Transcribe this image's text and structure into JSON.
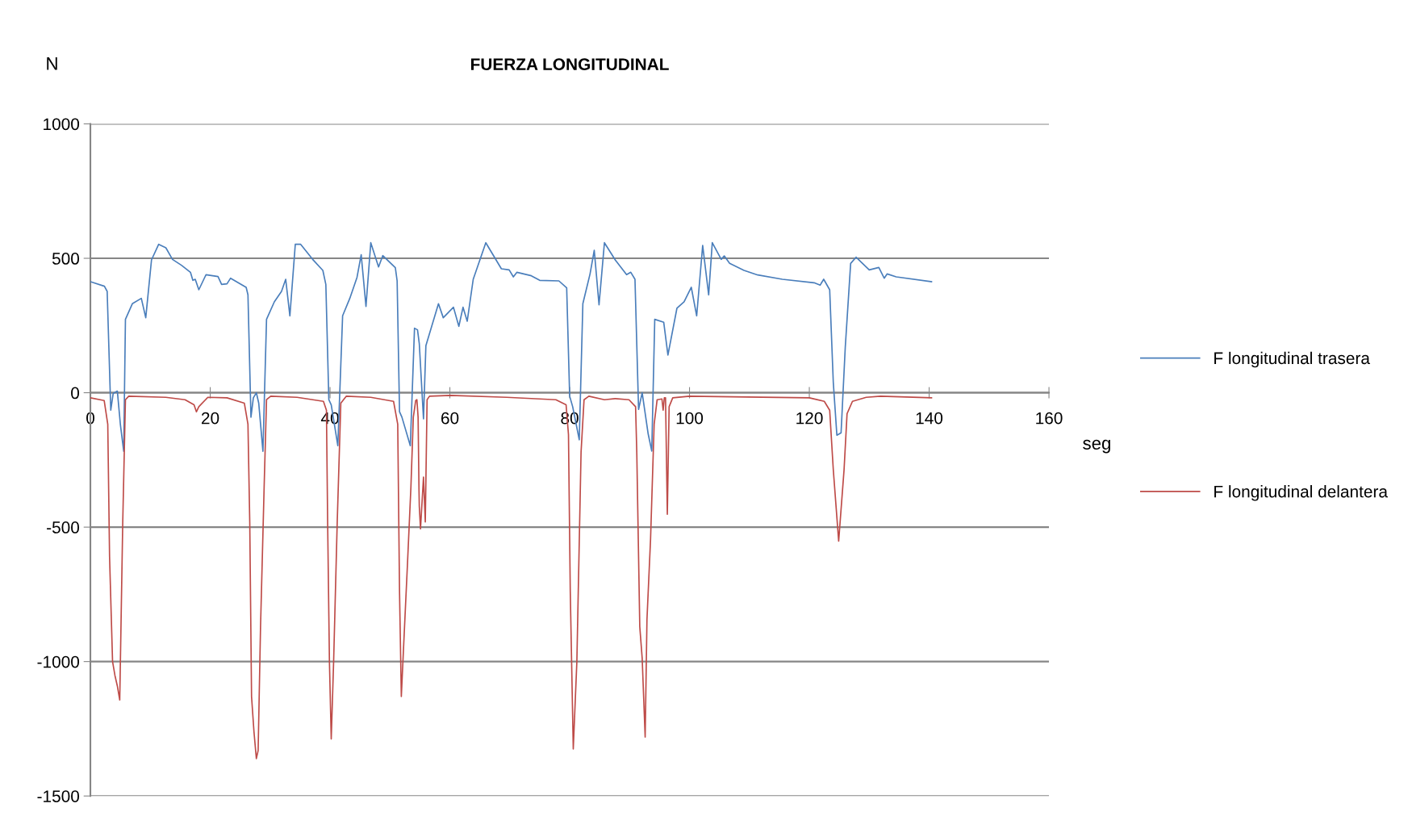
{
  "chart_data": {
    "type": "line",
    "title": "FUERZA LONGITUDINAL",
    "xlabel": "seg",
    "ylabel": "N",
    "xlim": [
      0,
      160
    ],
    "xticks": [
      0,
      20,
      40,
      60,
      80,
      100,
      120,
      140,
      160
    ],
    "ylim": [
      -1500,
      1000
    ],
    "yticks": [
      -1500,
      -1000,
      -500,
      0,
      500,
      1000
    ],
    "grid": "y",
    "legend": "right",
    "marker": "none",
    "line_style": "solid",
    "series": [
      {
        "name": "F longitudinal trasera",
        "color": "#4a7ebb",
        "x": [
          0,
          2.34,
          2.8,
          3.4,
          3.8,
          4.5,
          5.0,
          5.56,
          5.85,
          7.0,
          8.5,
          9.24,
          10.2,
          11.4,
          12.6,
          13.7,
          15.2,
          16.7,
          17.1,
          17.5,
          18.1,
          19.3,
          21.3,
          21.9,
          22.8,
          23.4,
          26.0,
          26.3,
          26.8,
          27.2,
          27.7,
          28.1,
          28.8,
          29.4,
          30.7,
          31.9,
          32.6,
          33.3,
          34.2,
          35.1,
          37.1,
          38.8,
          39.3,
          39.8,
          40.2,
          41.3,
          42.1,
          43.3,
          44.5,
          45.2,
          46.0,
          46.8,
          48.1,
          48.8,
          50.9,
          51.2,
          51.6,
          52.0,
          53.4,
          54.1,
          54.6,
          54.9,
          55.6,
          56.0,
          58.1,
          58.9,
          60.6,
          61.5,
          62.2,
          62.9,
          63.9,
          66.0,
          68.6,
          69.9,
          70.6,
          71.2,
          73.6,
          75.0,
          78.2,
          79.5,
          80.0,
          80.5,
          81.6,
          82.2,
          83.4,
          84.1,
          84.9,
          85.8,
          87.6,
          89.5,
          90.2,
          90.9,
          91.5,
          92.1,
          93.1,
          93.7,
          94.2,
          95.7,
          96.4,
          97.9,
          99.1,
          100.3,
          101.2,
          102.2,
          103.2,
          103.8,
          105.3,
          105.8,
          106.7,
          109.1,
          111.4,
          115.5,
          120.8,
          121.8,
          122.4,
          123.4,
          124.0,
          124.6,
          125.3,
          126.0,
          126.9,
          127.8,
          130.0,
          131.6,
          132.5,
          133.0,
          134.5,
          140.4
        ],
        "values": [
          413,
          396,
          377,
          -65,
          -3,
          6,
          -117,
          -218,
          273,
          331,
          351,
          279,
          494,
          552,
          539,
          496,
          474,
          448,
          418,
          422,
          383,
          439,
          432,
          403,
          405,
          426,
          392,
          364,
          -91,
          -19,
          0,
          -39,
          -218,
          273,
          338,
          377,
          422,
          286,
          552,
          552,
          496,
          455,
          403,
          -26,
          -45,
          -197,
          286,
          351,
          429,
          513,
          321,
          558,
          468,
          510,
          465,
          416,
          -71,
          -91,
          -197,
          240,
          234,
          182,
          -97,
          175,
          331,
          279,
          318,
          247,
          318,
          266,
          422,
          558,
          461,
          457,
          431,
          448,
          435,
          418,
          416,
          390,
          -13,
          -52,
          -175,
          331,
          442,
          530,
          327,
          558,
          494,
          439,
          448,
          422,
          -62,
          0,
          -153,
          -217,
          273,
          262,
          140,
          314,
          338,
          392,
          286,
          548,
          364,
          558,
          496,
          509,
          481,
          455,
          438,
          422,
          409,
          400,
          422,
          383,
          39,
          -158,
          -149,
          169,
          481,
          504,
          457,
          466,
          426,
          442,
          431,
          413
        ]
      },
      {
        "name": "F longitudinal delantera",
        "color": "#be4b48",
        "x": [
          0,
          2.3,
          2.9,
          3.2,
          3.7,
          4.1,
          4.5,
          4.9,
          5.4,
          5.85,
          6.4,
          12.6,
          15.8,
          17.3,
          17.7,
          18.1,
          19.6,
          22.8,
          25.7,
          26.3,
          26.6,
          26.9,
          27.3,
          27.7,
          28.0,
          28.4,
          29.0,
          29.4,
          30.1,
          34.5,
          38.9,
          39.4,
          39.6,
          39.9,
          40.2,
          40.6,
          41.2,
          41.8,
          42.7,
          46.8,
          50.6,
          51.3,
          51.6,
          51.9,
          52.3,
          52.9,
          53.5,
          53.9,
          54.3,
          54.5,
          54.7,
          54.85,
          54.9,
          55.1,
          55.6,
          55.9,
          56.2,
          56.6,
          60.1,
          69.5,
          77.7,
          79.4,
          79.8,
          80.1,
          80.6,
          81.2,
          81.9,
          82.4,
          83.2,
          85.8,
          87.6,
          89.9,
          91.0,
          91.2,
          91.7,
          92.1,
          92.6,
          92.9,
          93.5,
          94.1,
          94.6,
          95.4,
          95.6,
          95.8,
          96.0,
          96.3,
          96.6,
          97.2,
          100,
          109.6,
          120,
          122.5,
          123.4,
          124.0,
          124.9,
          125.8,
          126.3,
          127.2,
          129.5,
          131.9,
          140.4
        ],
        "values": [
          -19,
          -29,
          -117,
          -610,
          -1000,
          -1052,
          -1091,
          -1143,
          -481,
          -26,
          -13,
          -17,
          -26,
          -45,
          -71,
          -52,
          -17,
          -19,
          -39,
          -117,
          -481,
          -1130,
          -1260,
          -1361,
          -1331,
          -870,
          -351,
          -26,
          -13,
          -17,
          -32,
          -65,
          -481,
          -1000,
          -1288,
          -1000,
          -481,
          -39,
          -13,
          -17,
          -32,
          -117,
          -740,
          -1130,
          -935,
          -649,
          -351,
          -91,
          -29,
          -26,
          -91,
          -364,
          -422,
          -506,
          -314,
          -481,
          -26,
          -13,
          -10,
          -17,
          -26,
          -45,
          -156,
          -740,
          -1325,
          -1000,
          -221,
          -26,
          -13,
          -26,
          -22,
          -26,
          -52,
          -221,
          -870,
          -987,
          -1281,
          -844,
          -545,
          -117,
          -26,
          -23,
          -65,
          -19,
          -19,
          -452,
          -52,
          -19,
          -13,
          -16,
          -19,
          -32,
          -65,
          -286,
          -552,
          -286,
          -78,
          -32,
          -17,
          -13,
          -19
        ]
      }
    ]
  }
}
